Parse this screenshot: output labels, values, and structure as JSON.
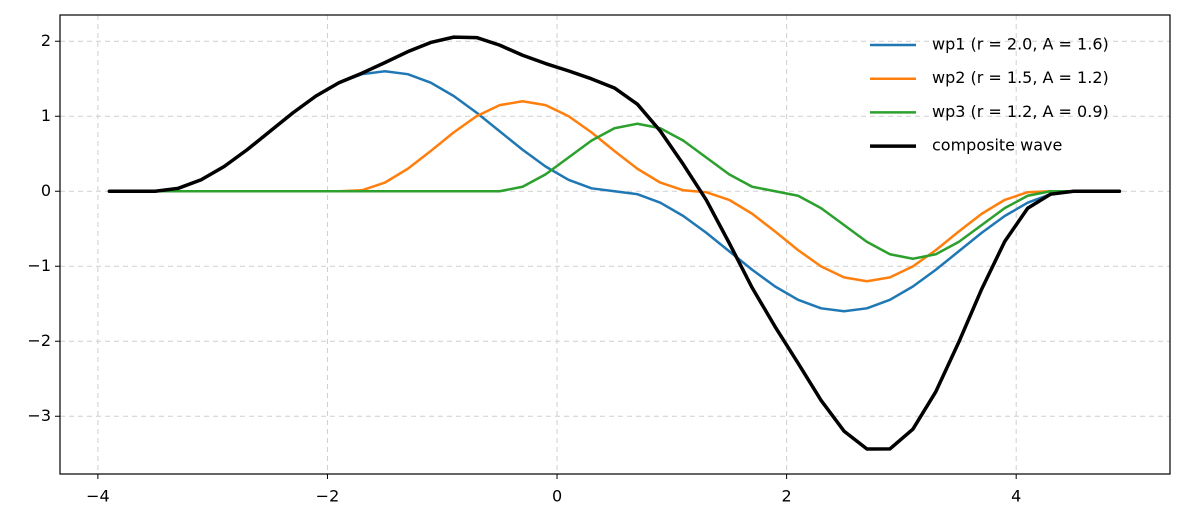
{
  "chart_data": {
    "type": "line",
    "x": [
      -3.9,
      -3.7,
      -3.5,
      -3.3,
      -3.1,
      -2.9,
      -2.7,
      -2.5,
      -2.3,
      -2.1,
      -1.9,
      -1.7,
      -1.5,
      -1.3,
      -1.1,
      -0.9,
      -0.7,
      -0.5,
      -0.3,
      -0.1,
      0.1,
      0.3,
      0.5,
      0.7,
      0.9,
      1.1,
      1.3,
      1.5,
      1.7,
      1.9,
      2.1,
      2.3,
      2.5,
      2.7,
      2.9,
      3.1,
      3.3,
      3.5,
      3.7,
      3.9,
      4.1,
      4.3,
      4.5,
      4.7,
      4.9
    ],
    "series": [
      {
        "name": "wp1 (r = 2.0, A = 1.6)",
        "color": "#1f77b4",
        "width": 2.5,
        "values": [
          0,
          0,
          0,
          0.039,
          0.153,
          0.33,
          0.553,
          0.8,
          1.047,
          1.27,
          1.447,
          1.561,
          1.6,
          1.561,
          1.447,
          1.27,
          1.047,
          0.8,
          0.553,
          0.33,
          0.153,
          0.039,
          0,
          -0.039,
          -0.153,
          -0.33,
          -0.553,
          -0.8,
          -1.047,
          -1.27,
          -1.447,
          -1.561,
          -1.6,
          -1.561,
          -1.447,
          -1.27,
          -1.047,
          -0.8,
          -0.553,
          -0.33,
          -0.153,
          -0.039,
          0,
          0,
          0
        ]
      },
      {
        "name": "wp2 (r = 1.5, A = 1.2)",
        "color": "#ff7f0e",
        "width": 2.5,
        "values": [
          0,
          0,
          0,
          0,
          0,
          0,
          0,
          0,
          0,
          0,
          0,
          0.013,
          0.115,
          0.3,
          0.537,
          0.785,
          1.002,
          1.148,
          1.2,
          1.148,
          1.002,
          0.785,
          0.537,
          0.3,
          0.115,
          0.013,
          -0.013,
          -0.115,
          -0.3,
          -0.537,
          -0.785,
          -1.002,
          -1.148,
          -1.2,
          -1.148,
          -1.002,
          -0.785,
          -0.537,
          -0.3,
          -0.115,
          -0.013,
          0,
          0,
          0,
          0
        ]
      },
      {
        "name": "wp3 (r = 1.2, A = 0.9)",
        "color": "#2ca02c",
        "width": 2.5,
        "values": [
          0,
          0,
          0,
          0,
          0,
          0,
          0,
          0,
          0,
          0,
          0,
          0,
          0,
          0,
          0,
          0,
          0,
          0,
          0.06,
          0.225,
          0.45,
          0.675,
          0.84,
          0.9,
          0.84,
          0.675,
          0.45,
          0.225,
          0.06,
          0,
          -0.06,
          -0.225,
          -0.45,
          -0.675,
          -0.84,
          -0.9,
          -0.84,
          -0.675,
          -0.45,
          -0.225,
          -0.06,
          0,
          0,
          0,
          0
        ]
      },
      {
        "name": "composite wave",
        "color": "#000000",
        "width": 3.5,
        "values": [
          0,
          0,
          0,
          0.039,
          0.153,
          0.33,
          0.553,
          0.8,
          1.047,
          1.27,
          1.447,
          1.574,
          1.715,
          1.861,
          1.984,
          2.055,
          2.049,
          1.948,
          1.813,
          1.703,
          1.605,
          1.499,
          1.377,
          1.161,
          0.802,
          0.358,
          -0.116,
          -0.69,
          -1.287,
          -1.807,
          -2.292,
          -2.788,
          -3.198,
          -3.436,
          -3.435,
          -3.172,
          -2.672,
          -2.012,
          -1.303,
          -0.67,
          -0.226,
          -0.039,
          0,
          0,
          0
        ]
      }
    ],
    "xlim": [
      -4.33,
      5.34
    ],
    "ylim": [
      -3.77,
      2.35
    ],
    "xticks": [
      {
        "value": -4,
        "label": "−4"
      },
      {
        "value": -2,
        "label": "−2"
      },
      0,
      2,
      4
    ],
    "yticks": [
      {
        "value": -3,
        "label": "−3"
      },
      {
        "value": -2,
        "label": "−2"
      },
      {
        "value": -1,
        "label": "−1"
      },
      0,
      1,
      2
    ],
    "grid": true,
    "legend": "upper right"
  }
}
